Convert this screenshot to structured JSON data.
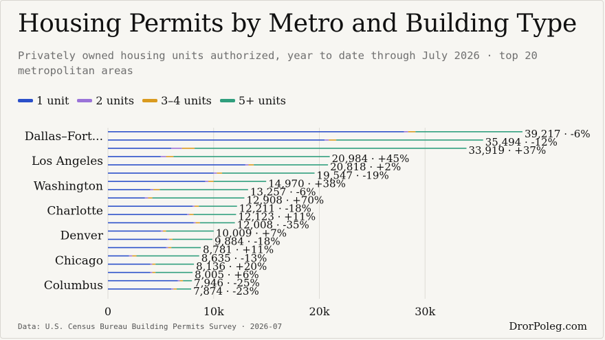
{
  "header": {
    "title": "Housing Permits by Metro and Building Type",
    "subtitle": "Privately owned housing units authorized, year to date through July 2026 · top 20 metropolitan areas"
  },
  "footer": {
    "source": "Data: U.S. Census Bureau Building Permits Survey · 2026-07",
    "brand": "DrorPoleg.com"
  },
  "legend": [
    {
      "label": "1 unit",
      "color": "#2a4fc9"
    },
    {
      "label": "2 units",
      "color": "#9a73d8"
    },
    {
      "label": "3–4 units",
      "color": "#d99a1f"
    },
    {
      "label": "5+ units",
      "color": "#2f9e7d"
    }
  ],
  "chart_data": {
    "type": "bar",
    "orientation": "horizontal",
    "stacked": true,
    "xlim": [
      0,
      40000
    ],
    "x_ticks": [
      0,
      10000,
      20000,
      30000
    ],
    "x_tick_labels": [
      "0",
      "10k",
      "20k",
      "30k"
    ],
    "y_tick_labels": [
      "Dallas–Fort...",
      "Los Angeles",
      "Washington",
      "Charlotte",
      "Denver",
      "Chicago",
      "Columbus"
    ],
    "y_tick_rows": [
      0,
      3,
      6,
      9,
      12,
      15,
      18
    ],
    "grid": "vertical",
    "bars": [
      {
        "total": 39217,
        "label": "39,217 · -6%",
        "segments": [
          28000,
          400,
          700,
          10117
        ]
      },
      {
        "total": 35494,
        "label": "35,494 · -12%",
        "segments": [
          20500,
          400,
          700,
          13894
        ]
      },
      {
        "total": 33919,
        "label": "33,919 · +37%",
        "segments": [
          6000,
          1000,
          1200,
          25719
        ]
      },
      {
        "total": 20984,
        "label": "20,984 · +45%",
        "segments": [
          5000,
          500,
          700,
          14784
        ]
      },
      {
        "total": 20818,
        "label": "20,818 · +2%",
        "segments": [
          13000,
          300,
          500,
          7018
        ]
      },
      {
        "total": 19547,
        "label": "19,547 · -19%",
        "segments": [
          10000,
          300,
          500,
          8747
        ]
      },
      {
        "total": 14970,
        "label": "14,970 · +38%",
        "segments": [
          9200,
          300,
          500,
          4970
        ]
      },
      {
        "total": 13257,
        "label": "13,257 · -6%",
        "segments": [
          4000,
          300,
          600,
          8357
        ]
      },
      {
        "total": 12908,
        "label": "12,908 · +70%",
        "segments": [
          3500,
          300,
          400,
          8708
        ]
      },
      {
        "total": 12211,
        "label": "12,211 · -18%",
        "segments": [
          8000,
          200,
          400,
          3611
        ]
      },
      {
        "total": 12123,
        "label": "12,123 · +11%",
        "segments": [
          7500,
          200,
          400,
          4023
        ]
      },
      {
        "total": 12008,
        "label": "12,008 · -35%",
        "segments": [
          8100,
          200,
          400,
          3308
        ]
      },
      {
        "total": 10009,
        "label": "10,009 · +7%",
        "segments": [
          5000,
          200,
          300,
          4509
        ]
      },
      {
        "total": 9884,
        "label": "9,884 · -18%",
        "segments": [
          5600,
          200,
          300,
          3784
        ]
      },
      {
        "total": 8781,
        "label": "8,781 · +11%",
        "segments": [
          5500,
          200,
          300,
          2781
        ]
      },
      {
        "total": 8635,
        "label": "8,635 · -13%",
        "segments": [
          2000,
          300,
          400,
          5935
        ]
      },
      {
        "total": 8136,
        "label": "8,136 · +20%",
        "segments": [
          4000,
          200,
          300,
          3636
        ]
      },
      {
        "total": 8005,
        "label": "8,005 · +6%",
        "segments": [
          4000,
          200,
          300,
          3505
        ]
      },
      {
        "total": 7946,
        "label": "7,946 · -25%",
        "segments": [
          6600,
          200,
          300,
          846
        ]
      },
      {
        "total": 7874,
        "label": "7,874 · -23%",
        "segments": [
          6000,
          200,
          300,
          1374
        ]
      }
    ]
  }
}
